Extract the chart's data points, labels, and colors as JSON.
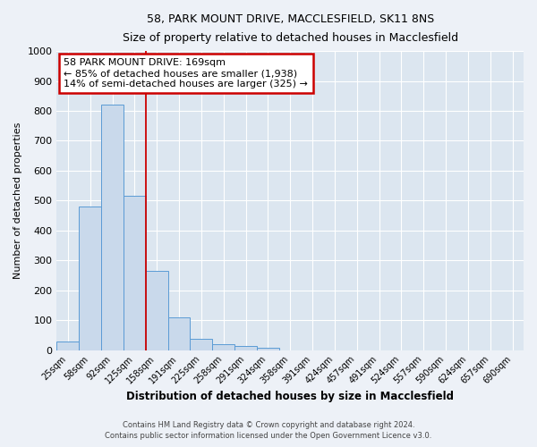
{
  "title1": "58, PARK MOUNT DRIVE, MACCLESFIELD, SK11 8NS",
  "title2": "Size of property relative to detached houses in Macclesfield",
  "xlabel": "Distribution of detached houses by size in Macclesfield",
  "ylabel": "Number of detached properties",
  "categories": [
    "25sqm",
    "58sqm",
    "92sqm",
    "125sqm",
    "158sqm",
    "191sqm",
    "225sqm",
    "258sqm",
    "291sqm",
    "324sqm",
    "358sqm",
    "391sqm",
    "424sqm",
    "457sqm",
    "491sqm",
    "524sqm",
    "557sqm",
    "590sqm",
    "624sqm",
    "657sqm",
    "690sqm"
  ],
  "values": [
    28,
    480,
    820,
    515,
    265,
    110,
    38,
    20,
    13,
    8,
    0,
    0,
    0,
    0,
    0,
    0,
    0,
    0,
    0,
    0,
    0
  ],
  "bar_color": "#c9d9eb",
  "bar_edge_color": "#5b9bd5",
  "property_line_bin": 3.5,
  "annotation_text": "58 PARK MOUNT DRIVE: 169sqm\n← 85% of detached houses are smaller (1,938)\n14% of semi-detached houses are larger (325) →",
  "annotation_box_color": "#ffffff",
  "annotation_box_edge_color": "#cc0000",
  "vline_color": "#cc0000",
  "ylim": [
    0,
    1000
  ],
  "yticks": [
    0,
    100,
    200,
    300,
    400,
    500,
    600,
    700,
    800,
    900,
    1000
  ],
  "footer1": "Contains HM Land Registry data © Crown copyright and database right 2024.",
  "footer2": "Contains public sector information licensed under the Open Government Licence v3.0.",
  "bg_color": "#edf1f7",
  "plot_bg_color": "#dce6f0"
}
